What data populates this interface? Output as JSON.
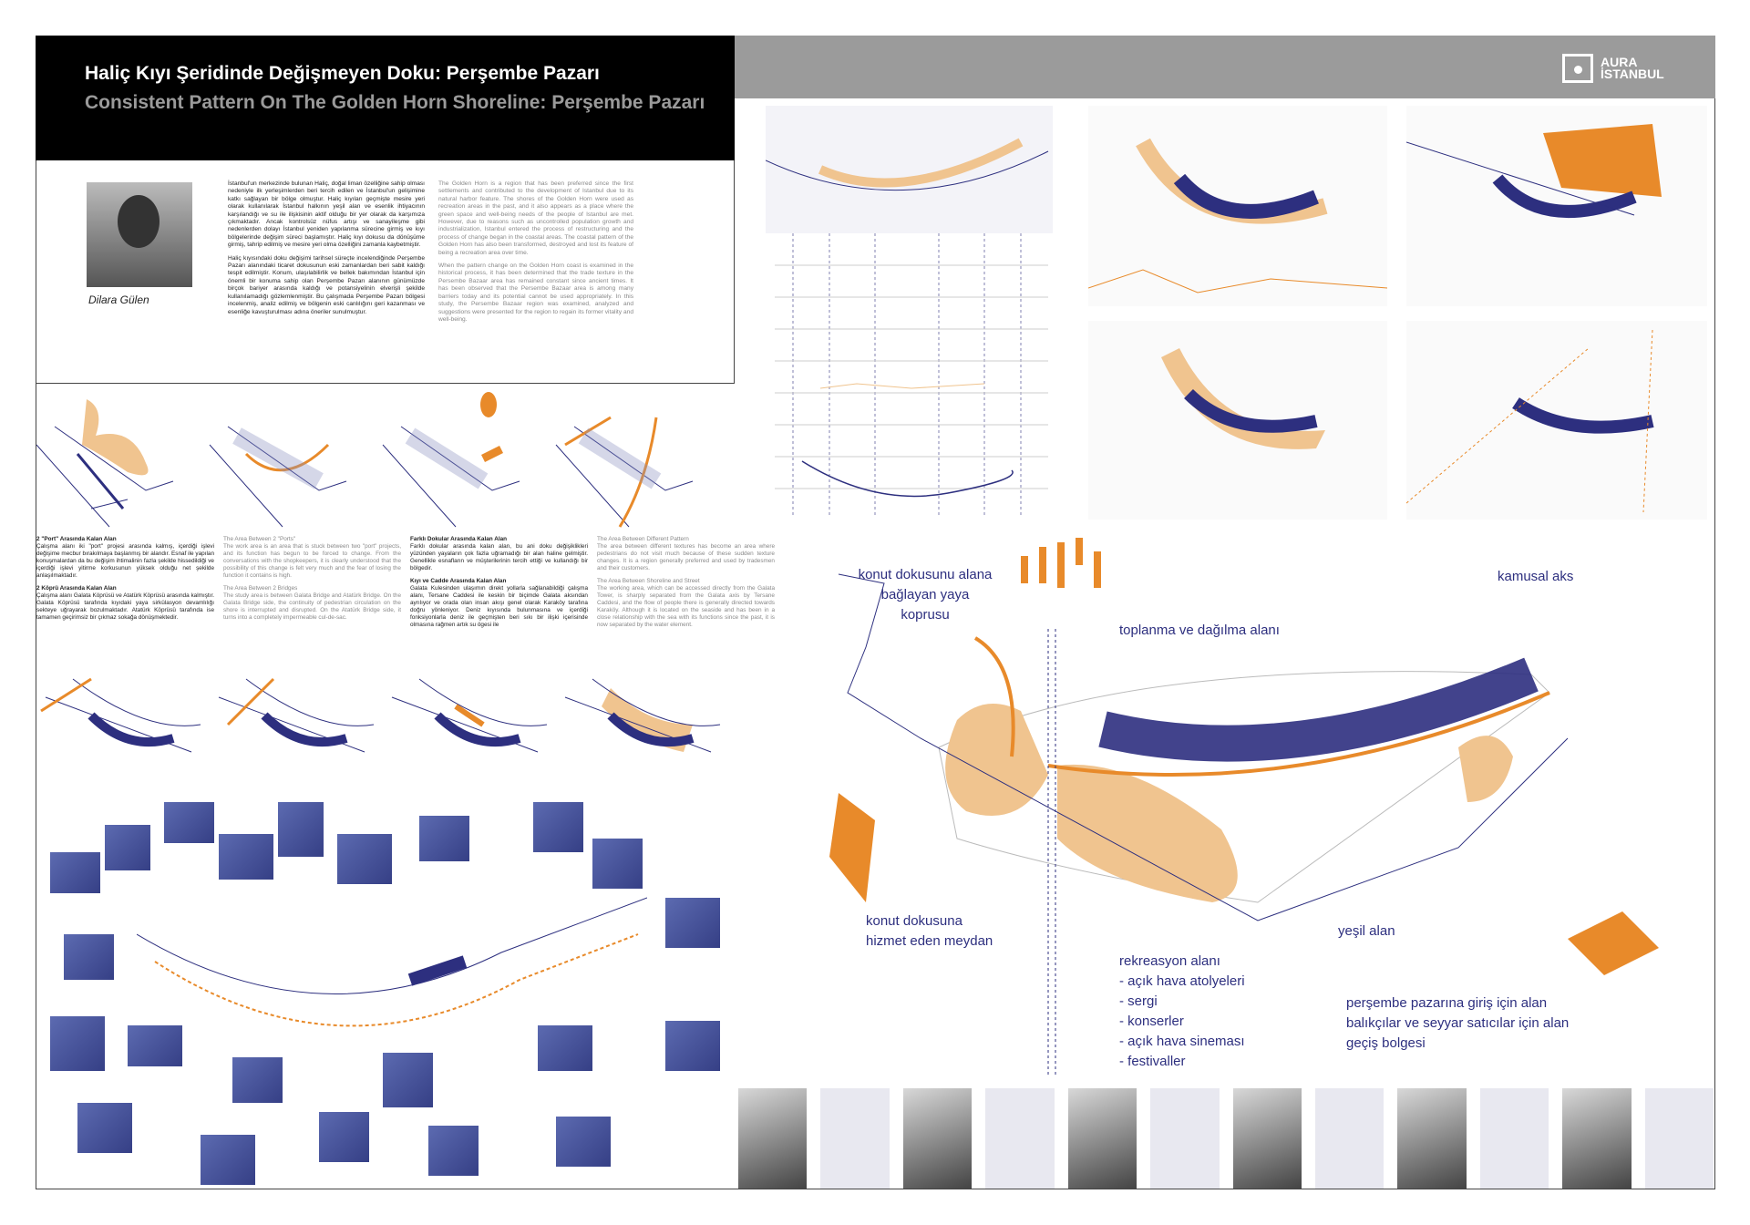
{
  "header": {
    "title_tr": "Haliç Kıyı Şeridinde Değişmeyen Doku: Perşembe Pazarı",
    "title_en": "Consistent Pattern On The Golden Horn Shoreline: Perşembe Pazarı"
  },
  "logo": {
    "text": "AURA İSTANBUL"
  },
  "author": {
    "name": "Dilara Gülen"
  },
  "intro": {
    "tr": [
      "İstanbul'un merkezinde bulunan Haliç, doğal liman özelliğine sahip olması nedeniyle ilk yerleşimlerden beri tercih edilen ve İstanbul'un gelişimine katkı sağlayan bir bölge olmuştur. Haliç kıyıları geçmişte mesire yeri olarak kullanılarak İstanbul halkının yeşil alan ve esenlik ihtiyacının karşılandığı ve su ile ilişkisinin aktif olduğu bir yer olarak da karşımıza çıkmaktadır. Ancak kontrolsüz nüfus artışı ve sanayileşme gibi nedenlerden dolayı İstanbul yeniden yapılanma sürecine girmiş ve kıyı bölgelerinde değişim süreci başlamıştır. Haliç kıyı dokusu da dönüşüme girmiş, tahrip edilmiş ve mesire yeri olma özelliğini zamanla kaybetmiştir.",
      "Haliç kıyısındaki doku değişimi tarihsel süreçte incelendiğinde Perşembe Pazarı alanındaki ticaret dokusunun eski zamanlardan beri sabit kaldığı tespit edilmiştir. Konum, ulaşılabilirlik ve bellek bakımından İstanbul için önemli bir konuma sahip olan Perşembe Pazarı alanının günümüzde birçok bariyer arasında kaldığı ve potansiyelinin elverişli şekilde kullanılamadığı gözlemlenmiştir. Bu çalışmada Perşembe Pazarı bölgesi incelenmiş, analiz edilmiş ve bölgenin eski canlılığını geri kazanması ve esenliğe kavuşturulması adına öneriler sunulmuştur."
    ],
    "en": [
      "The Golden Horn is a region that has been preferred since the first settlements and contributed to the development of Istanbul due to its natural harbor feature. The shores of the Golden Horn were used as recreation areas in the past, and it also appears as a place where the green space and well-being needs of the people of Istanbul are met. However, due to reasons such as uncontrolled population growth and industrialization, Istanbul entered the process of restructuring and the process of change began in the coastal areas. The coastal pattern of the Golden Horn has also been transformed, destroyed and lost its feature of being a recreation area over time.",
      "When the pattern change on the Golden Horn coast is examined in the historical process, it has been determined that the trade texture in the Persembe Bazaar area has remained constant since ancient times. It has been observed that the Persembe Bazaar area is among many barriers today and its potential cannot be used appropriately. In this study, the Persembe Bazaar region was examined, analyzed and suggestions were presented for the region to regain its former vitality and well-being."
    ]
  },
  "analysis": [
    {
      "tr_title": "2 \"Port\" Arasında Kalan Alan",
      "tr": "Çalışma alanı iki \"port\" projesi arasında kalmış, içerdiği işlevi değişime mecbur bırakılmaya başlanmış bir alandır. Esnaf ile yapılan konuşmalardan da bu değişim ihtimalinin fazla şekilde hissedildiği ve içerdiği işlevi yitirme korkusunun yüksek olduğu net şekilde anlaşılmaktadır.",
      "en_title": "The Area Between 2 \"Ports\"",
      "en": "The work area is an area that is stuck between two \"port\" projects, and its function has begun to be forced to change. From the conversations with the shopkeepers, it is clearly understood that the possibility of this change is felt very much and the fear of losing the function it contains is high."
    },
    {
      "tr_title": "2 Köprü Arasında Kalan Alan",
      "tr": "Çalışma alanı Galata Köprüsü ve Atatürk Köprüsü arasında kalmıştır. Galata Köprüsü tarafında kıyıdaki yaya sirkülasyon devamlılığı sekteye uğrayarak bozulmaktadır. Atatürk Köprüsü tarafında ise tamamen geçirimsiz bir çıkmaz sokağa dönüşmektedir.",
      "en_title": "The Area Between 2 Bridges",
      "en": "The study area is between Galata Bridge and Atatürk Bridge. On the Galata Bridge side, the continuity of pedestrian circulation on the shore is interrupted and disrupted. On the Atatürk Bridge side, it turns into a completely impermeable cul-de-sac."
    },
    {
      "tr_title": "Farklı Dokular Arasında Kalan Alan",
      "tr": "Farklı dokular arasında kalan alan, bu ani doku değişiklikleri yüzünden yayaların çok fazla uğramadığı bir alan haline gelmiştir. Genellikle esnafların ve müşterilerinin tercih ettiği ve kullandığı bir bölgedir.",
      "en_title": "The Area Between Different Pattern",
      "en": "The area between different textures has become an area where pedestrians do not visit much because of these sudden texture changes. It is a region generally preferred and used by tradesmen and their customers."
    },
    {
      "tr_title": "Kıyı ve Cadde Arasında Kalan Alan",
      "tr": "Galata Kulesinden ulaşımın direkt yollarla sağlanabildiği çalışma alanı, Tersane Caddesi ile keskin bir biçimde Galata aksından ayrılıyor ve orada olan insan akışı genel olarak Karaköy tarafına doğru yönleniyor. Deniz kıyısında bulunmasına ve içerdiği fonksiyonlarla deniz ile geçmişten beri sıkı bir ilişki içerisinde olmasına rağmen artık su ögesi ile",
      "en_title": "The Area Between Shoreline and Street",
      "en": "The working area, which can be accessed directly from the Galata Tower, is sharply separated from the Galata axis by Tersane Caddesi, and the flow of people there is generally directed towards Karaköy. Although it is located on the seaside and has been in a close relationship with the sea with its functions since the past, it is now separated by the water element."
    }
  ],
  "plan_labels": {
    "bridge": "konut dokusunu alana bağlayan yaya koprusu",
    "gathering": "toplanma ve dağılma alanı",
    "public_axis": "kamusal aks",
    "square": "konut dokusuna hizmet eden meydan",
    "green": "yeşil alan",
    "recreation": "rekreasyon alanı",
    "recreation_items": [
      "- açık hava atolyeleri",
      "- sergi",
      "- konserler",
      "- açık hava sineması",
      "- festivaller"
    ],
    "entrance": [
      "perşembe pazarına giriş için alan",
      "balıkçılar ve seyyar satıcılar için alan",
      "geçiş bolgesi"
    ]
  },
  "colors": {
    "navy": "#2d2f7f",
    "orange": "#e88a2a",
    "sand": "#f0c48f",
    "gray": "#9b9b9b"
  }
}
